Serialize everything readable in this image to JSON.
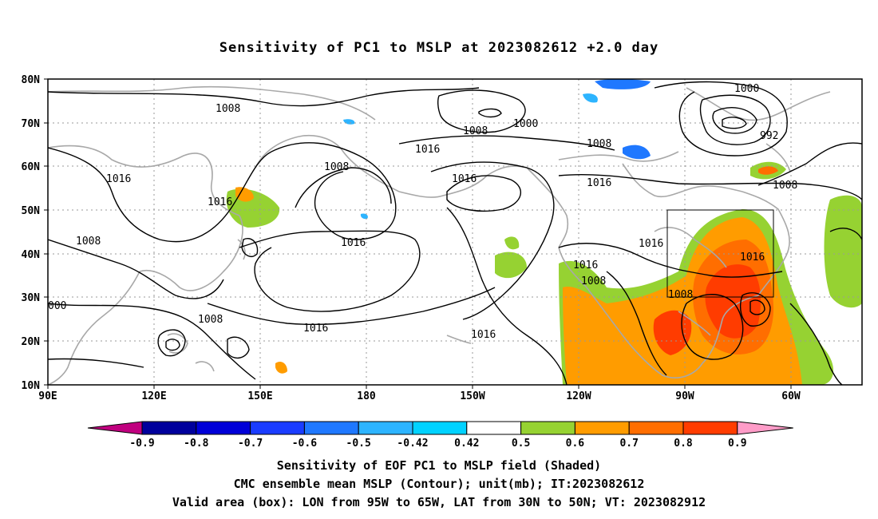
{
  "title": "Sensitivity of PC1 to MSLP at 2023082612 +2.0 day",
  "axes": {
    "lon_ticks": [
      "90E",
      "120E",
      "150E",
      "180",
      "150W",
      "120W",
      "90W",
      "60W"
    ],
    "lat_ticks": [
      "80N",
      "70N",
      "60N",
      "50N",
      "40N",
      "30N",
      "20N",
      "10N"
    ]
  },
  "colorbar": {
    "labels": [
      "-0.9",
      "-0.8",
      "-0.7",
      "-0.6",
      "-0.5",
      "-0.42",
      "0.42",
      "0.5",
      "0.6",
      "0.7",
      "0.8",
      "0.9"
    ],
    "colors": [
      "#c0007f",
      "#00009c",
      "#0000d8",
      "#1a3cff",
      "#1f78ff",
      "#2db4ff",
      "#00d2ff",
      "#ffffff",
      "#96d232",
      "#ff9c00",
      "#ff6e00",
      "#ff3c00",
      "#ff0000",
      "#ff9cc8"
    ]
  },
  "contour_labels": [
    "1008",
    "1016",
    "1008",
    "1000",
    "1008",
    "1000",
    "992",
    "1016",
    "1016",
    "1008",
    "1016",
    "1008",
    "1016",
    "1016",
    "1016",
    "1008",
    "1016",
    "1008",
    "1008",
    "1016",
    "1016",
    "1008",
    "000"
  ],
  "captions": [
    "Sensitivity of EOF PC1 to MSLP field (Shaded)",
    "CMC ensemble mean MSLP (Contour); unit(mb); IT:2023082612",
    "Valid area (box): LON from 95W to 65W, LAT from 30N to 50N; VT: 2023082912"
  ],
  "colors": {
    "land_outline": "#a8a8a8",
    "contour": "#000000",
    "grid": "#999999"
  }
}
